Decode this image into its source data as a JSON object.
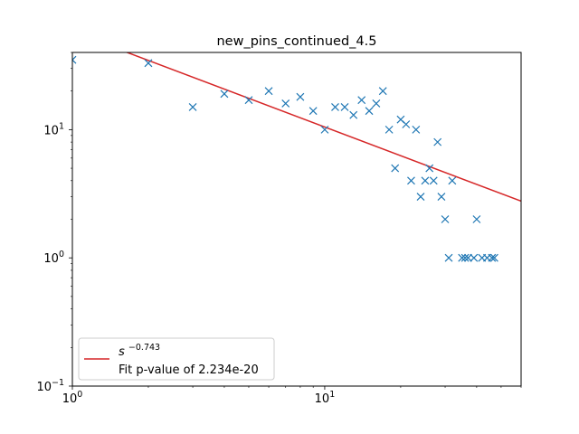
{
  "chart_data": {
    "type": "scatter",
    "title": "new_pins_continued_4.5",
    "xlabel": "",
    "ylabel": "",
    "xscale": "log",
    "yscale": "log",
    "xlim": [
      1,
      60
    ],
    "ylim": [
      0.1,
      40
    ],
    "x_ticks": [
      {
        "value": 1,
        "base": "10",
        "exp": "0"
      },
      {
        "value": 10,
        "base": "10",
        "exp": "1"
      }
    ],
    "y_ticks": [
      {
        "value": 0.1,
        "base": "10",
        "exp": "−1"
      },
      {
        "value": 1,
        "base": "10",
        "exp": "0"
      },
      {
        "value": 10,
        "base": "10",
        "exp": "1"
      }
    ],
    "grid": false,
    "legend_position": "lower-left",
    "series": [
      {
        "type": "scatter",
        "marker": "x",
        "color": "#1f77b4",
        "points": [
          [
            1,
            35
          ],
          [
            2,
            33
          ],
          [
            3,
            15
          ],
          [
            4,
            19
          ],
          [
            5,
            17
          ],
          [
            6,
            20
          ],
          [
            7,
            16
          ],
          [
            8,
            18
          ],
          [
            9,
            14
          ],
          [
            10,
            10
          ],
          [
            11,
            15
          ],
          [
            12,
            15
          ],
          [
            13,
            13
          ],
          [
            14,
            17
          ],
          [
            15,
            14
          ],
          [
            16,
            16
          ],
          [
            17,
            20
          ],
          [
            18,
            10
          ],
          [
            19,
            5
          ],
          [
            20,
            12
          ],
          [
            21,
            11
          ],
          [
            22,
            4
          ],
          [
            23,
            10
          ],
          [
            24,
            3
          ],
          [
            25,
            4
          ],
          [
            26,
            5
          ],
          [
            27,
            4
          ],
          [
            28,
            8
          ],
          [
            29,
            3
          ],
          [
            30,
            2
          ],
          [
            31,
            1
          ],
          [
            32,
            4
          ],
          [
            35,
            1
          ],
          [
            36,
            1
          ],
          [
            37,
            1
          ],
          [
            39,
            1
          ],
          [
            40,
            2
          ],
          [
            42,
            1
          ],
          [
            44,
            1
          ],
          [
            46,
            1
          ],
          [
            47,
            1
          ]
        ]
      },
      {
        "type": "line",
        "color": "#d62728",
        "label_base": "s",
        "label_exp": "−0.743",
        "label_line2": "Fit p-value of 2.234e-20",
        "a": 58,
        "exponent": -0.743
      }
    ]
  }
}
